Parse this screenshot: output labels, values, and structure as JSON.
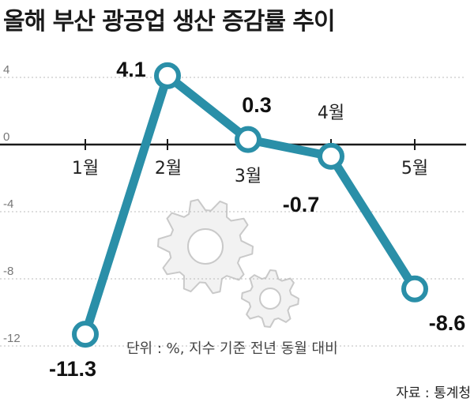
{
  "title": "올해 부산 광공업 생산 증감률 추이",
  "unit_note": "단위 : %, 지수 기준 전년 동월 대비",
  "source": "자료 : 통계청",
  "colors": {
    "line": "#2a8fa8",
    "axis": "#1a1a1a",
    "grid": "#bbbbbb"
  },
  "decoration": "gear-icons",
  "chart_data": {
    "type": "line",
    "title": "올해 부산 광공업 생산 증감률 추이",
    "categories": [
      "1월",
      "2월",
      "3월",
      "4월",
      "5월"
    ],
    "values": [
      -11.3,
      4.1,
      0.3,
      -0.7,
      -8.6
    ],
    "value_labels": [
      "-11.3",
      "4.1",
      "0.3",
      "-0.7",
      "-8.6"
    ],
    "yticks": [
      "4",
      "0",
      "-4",
      "-8",
      "-12"
    ],
    "ylim": [
      -12,
      4
    ],
    "grid": true,
    "xlabel": "",
    "ylabel": ""
  }
}
